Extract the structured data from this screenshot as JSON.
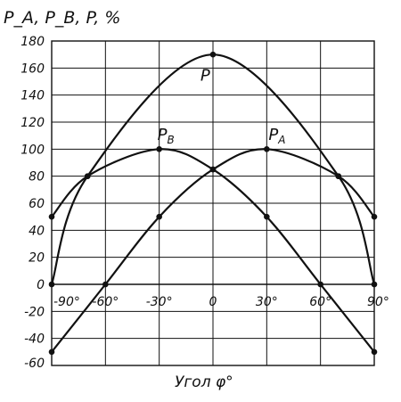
{
  "chart_data": {
    "type": "line",
    "title": "",
    "ylabel": "P_A, P_B, P, %",
    "xlabel": "Угол φ°",
    "xlim": [
      -90,
      90
    ],
    "ylim": [
      -60,
      180
    ],
    "grid": true,
    "x_tick_labels": [
      "-90°",
      "-60°",
      "-30°",
      "0",
      "30°",
      "60°",
      "90°"
    ],
    "y_tick_labels": [
      "180",
      "160",
      "140",
      "120",
      "100",
      "80",
      "60",
      "40",
      "20",
      "0",
      "-20",
      "-40",
      "-60"
    ],
    "series": [
      {
        "name": "P",
        "x": [
          -90,
          -70,
          0,
          70,
          90
        ],
        "y": [
          0,
          80,
          170,
          80,
          0
        ]
      },
      {
        "name": "P_B",
        "x": [
          -90,
          -70,
          -30,
          0,
          30,
          60,
          90
        ],
        "y": [
          50,
          80,
          100,
          85,
          50,
          0,
          -50
        ]
      },
      {
        "name": "P_A",
        "x": [
          -90,
          -60,
          -30,
          0,
          30,
          70,
          90
        ],
        "y": [
          -50,
          0,
          50,
          85,
          100,
          80,
          50
        ]
      }
    ],
    "series_labels": {
      "P": "P",
      "P_B": "P",
      "P_A": "P",
      "P_B_sub": "B",
      "P_A_sub": "A"
    }
  }
}
